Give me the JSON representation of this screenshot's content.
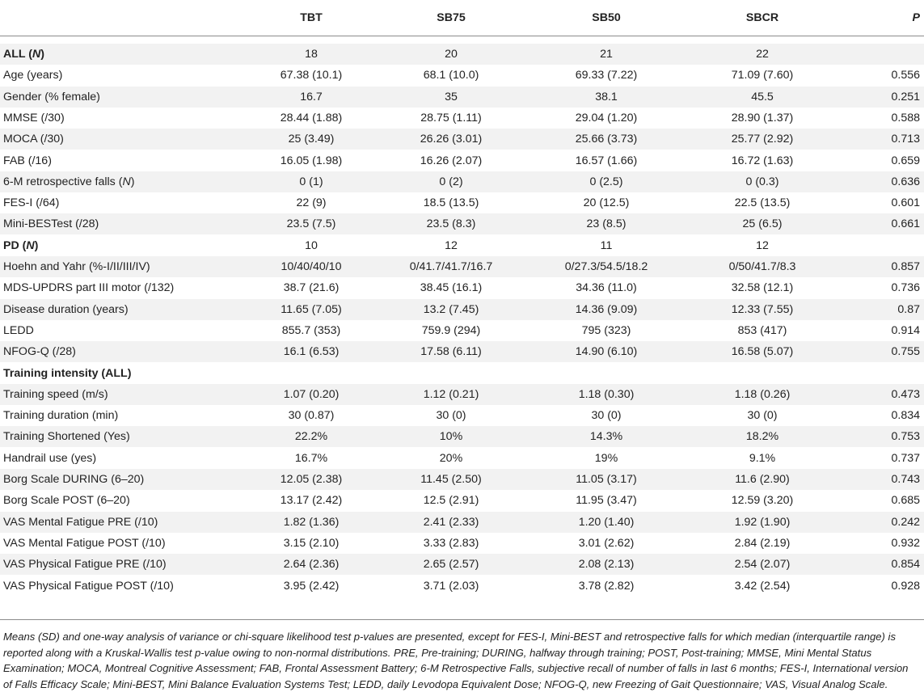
{
  "header": {
    "label": "",
    "columns": [
      "TBT",
      "SB75",
      "SB50",
      "SBCR",
      "P"
    ]
  },
  "rows": [
    {
      "label": "ALL",
      "label_suffix": "N",
      "bold": true,
      "vals": [
        "18",
        "20",
        "21",
        "22",
        ""
      ]
    },
    {
      "label": "Age (years)",
      "vals": [
        "67.38 (10.1)",
        "68.1 (10.0)",
        "69.33 (7.22)",
        "71.09 (7.60)",
        "0.556"
      ]
    },
    {
      "label": "Gender (% female)",
      "vals": [
        "16.7",
        "35",
        "38.1",
        "45.5",
        "0.251"
      ]
    },
    {
      "label": "MMSE (/30)",
      "vals": [
        "28.44 (1.88)",
        "28.75 (1.11)",
        "29.04 (1.20)",
        "28.90 (1.37)",
        "0.588"
      ]
    },
    {
      "label": "MOCA (/30)",
      "vals": [
        "25 (3.49)",
        "26.26 (3.01)",
        "25.66 (3.73)",
        "25.77 (2.92)",
        "0.713"
      ]
    },
    {
      "label": "FAB (/16)",
      "vals": [
        "16.05 (1.98)",
        "16.26 (2.07)",
        "16.57 (1.66)",
        "16.72 (1.63)",
        "0.659"
      ]
    },
    {
      "label": "6-M retrospective falls",
      "label_suffix": "N",
      "vals": [
        "0 (1)",
        "0 (2)",
        "0 (2.5)",
        "0 (0.3)",
        "0.636"
      ]
    },
    {
      "label": "FES-I (/64)",
      "vals": [
        "22 (9)",
        "18.5 (13.5)",
        "20 (12.5)",
        "22.5 (13.5)",
        "0.601"
      ]
    },
    {
      "label": "Mini-BESTest (/28)",
      "vals": [
        "23.5 (7.5)",
        "23.5 (8.3)",
        "23 (8.5)",
        "25 (6.5)",
        "0.661"
      ]
    },
    {
      "label": "PD",
      "label_suffix": "N",
      "bold": true,
      "vals": [
        "10",
        "12",
        "11",
        "12",
        ""
      ]
    },
    {
      "label": "Hoehn and Yahr (%-I/II/III/IV)",
      "vals": [
        "10/40/40/10",
        "0/41.7/41.7/16.7",
        "0/27.3/54.5/18.2",
        "0/50/41.7/8.3",
        "0.857"
      ]
    },
    {
      "label": "MDS-UPDRS part III motor (/132)",
      "vals": [
        "38.7 (21.6)",
        "38.45 (16.1)",
        "34.36 (11.0)",
        "32.58 (12.1)",
        "0.736"
      ]
    },
    {
      "label": "Disease duration (years)",
      "vals": [
        "11.65 (7.05)",
        "13.2 (7.45)",
        "14.36 (9.09)",
        "12.33 (7.55)",
        "0.87"
      ]
    },
    {
      "label": "LEDD",
      "vals": [
        "855.7 (353)",
        "759.9 (294)",
        "795 (323)",
        "853 (417)",
        "0.914"
      ]
    },
    {
      "label": "NFOG-Q (/28)",
      "vals": [
        "16.1 (6.53)",
        "17.58 (6.11)",
        "14.90 (6.10)",
        "16.58 (5.07)",
        "0.755"
      ]
    },
    {
      "label": "Training intensity (ALL)",
      "bold": true,
      "vals": [
        "",
        "",
        "",
        "",
        ""
      ]
    },
    {
      "label": "Training speed (m/s)",
      "vals": [
        "1.07 (0.20)",
        "1.12 (0.21)",
        "1.18 (0.30)",
        "1.18 (0.26)",
        "0.473"
      ]
    },
    {
      "label": "Training duration (min)",
      "vals": [
        "30 (0.87)",
        "30 (0)",
        "30 (0)",
        "30 (0)",
        "0.834"
      ]
    },
    {
      "label": "Training Shortened (Yes)",
      "vals": [
        "22.2%",
        "10%",
        "14.3%",
        "18.2%",
        "0.753"
      ]
    },
    {
      "label": "Handrail use (yes)",
      "vals": [
        "16.7%",
        "20%",
        "19%",
        "9.1%",
        "0.737"
      ]
    },
    {
      "label": "Borg Scale DURING (6–20)",
      "vals": [
        "12.05 (2.38)",
        "11.45 (2.50)",
        "11.05 (3.17)",
        "11.6 (2.90)",
        "0.743"
      ]
    },
    {
      "label": "Borg Scale POST (6–20)",
      "vals": [
        "13.17 (2.42)",
        "12.5 (2.91)",
        "11.95 (3.47)",
        "12.59 (3.20)",
        "0.685"
      ]
    },
    {
      "label": "VAS Mental Fatigue PRE (/10)",
      "vals": [
        "1.82 (1.36)",
        "2.41 (2.33)",
        "1.20 (1.40)",
        "1.92 (1.90)",
        "0.242"
      ]
    },
    {
      "label": "VAS Mental Fatigue POST (/10)",
      "vals": [
        "3.15 (2.10)",
        "3.33 (2.83)",
        "3.01 (2.62)",
        "2.84 (2.19)",
        "0.932"
      ]
    },
    {
      "label": "VAS Physical Fatigue PRE (/10)",
      "vals": [
        "2.64 (2.36)",
        "2.65 (2.57)",
        "2.08 (2.13)",
        "2.54 (2.07)",
        "0.854"
      ]
    },
    {
      "label": "VAS Physical Fatigue POST (/10)",
      "vals": [
        "3.95 (2.42)",
        "3.71 (2.03)",
        "3.78 (2.82)",
        "3.42 (2.54)",
        "0.928"
      ]
    }
  ],
  "footnote": "Means (SD) and one-way analysis of variance or chi-square likelihood test p-values are presented, except for FES-I, Mini-BEST and retrospective falls for which median (interquartile range) is reported along with a Kruskal-Wallis test p-value owing to non-normal distributions. PRE, Pre-training; DURING, halfway through training; POST, Post-training; MMSE, Mini Mental Status Examination; MOCA, Montreal Cognitive Assessment; FAB, Frontal Assessment Battery; 6-M Retrospective Falls, subjective recall of number of falls in last 6 months; FES-I, International version of Falls Efficacy Scale; Mini-BEST, Mini Balance Evaluation Systems Test; LEDD, daily Levodopa Equivalent Dose; NFOG-Q, new Freezing of Gait Questionnaire; VAS, Visual Analog Scale."
}
